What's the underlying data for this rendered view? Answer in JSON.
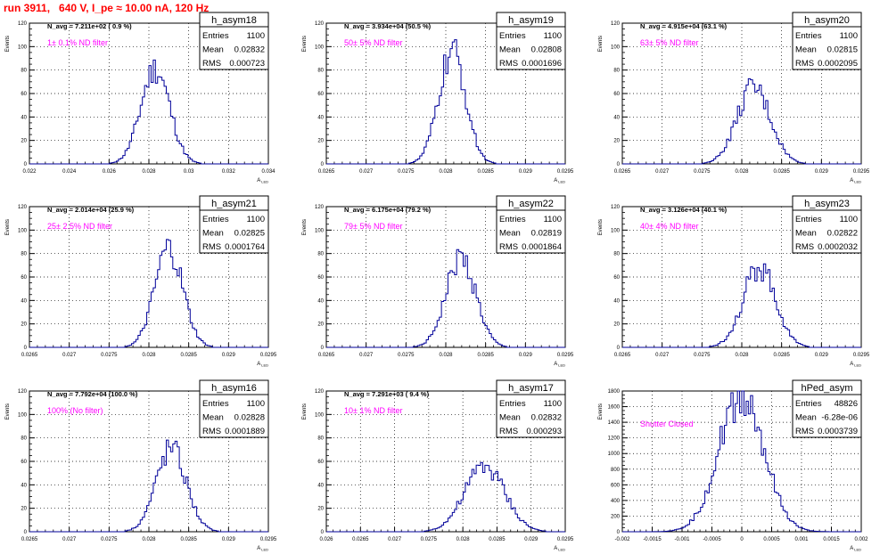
{
  "page_title": "run 3911,   640 V, I_pe ≈ 10.00 nA, 120 Hz",
  "colors": {
    "histogram": "#000099",
    "text": "#000000",
    "filter_label": "#ff00ff",
    "title": "#ff0000"
  },
  "chart_data": [
    {
      "type": "bar",
      "name": "h_asym18",
      "ylabel": "Events",
      "xlabel": "A_LED",
      "grid": true,
      "xlim": [
        0.022,
        0.034
      ],
      "ylim": [
        0,
        120
      ],
      "xticks": [
        "0.022",
        "0.024",
        "0.026",
        "0.028",
        "0.03",
        "0.032",
        "0.034"
      ],
      "yticks": [
        "0",
        "20",
        "40",
        "60",
        "80",
        "100",
        "120"
      ],
      "stats": [
        [
          "Entries",
          "1100"
        ],
        [
          "Mean",
          "0.02832"
        ],
        [
          "RMS",
          "0.000723"
        ]
      ],
      "annotation": "N_avg = 7.211e+02 ( 0.9 %)",
      "filter_label": "1± 0.1% ND filter",
      "peak": 83,
      "dist": {
        "mean": 0.02832,
        "rms": 0.000723
      }
    },
    {
      "type": "bar",
      "name": "h_asym19",
      "ylabel": "Events",
      "xlabel": "A_LED",
      "grid": true,
      "xlim": [
        0.0265,
        0.0295
      ],
      "ylim": [
        0,
        120
      ],
      "xticks": [
        "0.0265",
        "0.027",
        "0.0275",
        "0.028",
        "0.0285",
        "0.029",
        "0.0295"
      ],
      "yticks": [
        "0",
        "20",
        "40",
        "60",
        "80",
        "100",
        "120"
      ],
      "stats": [
        [
          "Entries",
          "1100"
        ],
        [
          "Mean",
          "0.02808"
        ],
        [
          "RMS",
          "0.0001696"
        ]
      ],
      "annotation": "N_avg = 3.934e+04 (50.5 %)",
      "filter_label": "50± 5% ND filter",
      "peak": 97,
      "dist": {
        "mean": 0.02808,
        "rms": 0.0001696
      }
    },
    {
      "type": "bar",
      "name": "h_asym20",
      "ylabel": "Events",
      "xlabel": "A_LED",
      "grid": true,
      "xlim": [
        0.0265,
        0.0295
      ],
      "ylim": [
        0,
        120
      ],
      "xticks": [
        "0.0265",
        "0.027",
        "0.0275",
        "0.028",
        "0.0285",
        "0.029",
        "0.0295"
      ],
      "yticks": [
        "0",
        "20",
        "40",
        "60",
        "80",
        "100",
        "120"
      ],
      "stats": [
        [
          "Entries",
          "1100"
        ],
        [
          "Mean",
          "0.02815"
        ],
        [
          "RMS",
          "0.0002095"
        ]
      ],
      "annotation": "N_avg = 4.915e+04 (63.1 %)",
      "filter_label": "63± 5% ND filter",
      "peak": 66,
      "dist": {
        "mean": 0.02815,
        "rms": 0.0002095
      }
    },
    {
      "type": "bar",
      "name": "h_asym21",
      "ylabel": "Events",
      "xlabel": "A_LED",
      "grid": true,
      "xlim": [
        0.0265,
        0.0295
      ],
      "ylim": [
        0,
        120
      ],
      "xticks": [
        "0.0265",
        "0.027",
        "0.0275",
        "0.028",
        "0.0285",
        "0.029",
        "0.0295"
      ],
      "yticks": [
        "0",
        "20",
        "40",
        "60",
        "80",
        "100",
        "120"
      ],
      "stats": [
        [
          "Entries",
          "1100"
        ],
        [
          "Mean",
          "0.02825"
        ],
        [
          "RMS",
          "0.0001764"
        ]
      ],
      "annotation": "N_avg = 2.014e+04 (25.9 %)",
      "filter_label": "25± 2.5% ND filter",
      "peak": 85,
      "dist": {
        "mean": 0.02825,
        "rms": 0.0001764
      }
    },
    {
      "type": "bar",
      "name": "h_asym22",
      "ylabel": "Events",
      "xlabel": "A_LED",
      "grid": true,
      "xlim": [
        0.0265,
        0.0295
      ],
      "ylim": [
        0,
        120
      ],
      "xticks": [
        "0.0265",
        "0.027",
        "0.0275",
        "0.028",
        "0.0285",
        "0.029",
        "0.0295"
      ],
      "yticks": [
        "0",
        "20",
        "40",
        "60",
        "80",
        "100",
        "120"
      ],
      "stats": [
        [
          "Entries",
          "1100"
        ],
        [
          "Mean",
          "0.02819"
        ],
        [
          "RMS",
          "0.0001864"
        ]
      ],
      "annotation": "N_avg = 6.175e+04 (79.2 %)",
      "filter_label": "79± 5% ND filter",
      "peak": 78,
      "dist": {
        "mean": 0.02819,
        "rms": 0.0001864
      }
    },
    {
      "type": "bar",
      "name": "h_asym23",
      "ylabel": "Events",
      "xlabel": "A_LED",
      "grid": true,
      "xlim": [
        0.0265,
        0.0295
      ],
      "ylim": [
        0,
        120
      ],
      "xticks": [
        "0.0265",
        "0.027",
        "0.0275",
        "0.028",
        "0.0285",
        "0.029",
        "0.0295"
      ],
      "yticks": [
        "0",
        "20",
        "40",
        "60",
        "80",
        "100",
        "120"
      ],
      "stats": [
        [
          "Entries",
          "1100"
        ],
        [
          "Mean",
          "0.02822"
        ],
        [
          "RMS",
          "0.0002032"
        ]
      ],
      "annotation": "N_avg = 3.126e+04 (40.1 %)",
      "filter_label": "40± 4% ND filter",
      "peak": 70,
      "dist": {
        "mean": 0.02822,
        "rms": 0.0002032
      }
    },
    {
      "type": "bar",
      "name": "h_asym16",
      "ylabel": "Events",
      "xlabel": "A_LED",
      "grid": true,
      "xlim": [
        0.0265,
        0.0295
      ],
      "ylim": [
        0,
        120
      ],
      "xticks": [
        "0.0265",
        "0.027",
        "0.0275",
        "0.028",
        "0.0285",
        "0.029",
        "0.0295"
      ],
      "yticks": [
        "0",
        "20",
        "40",
        "60",
        "80",
        "100",
        "120"
      ],
      "stats": [
        [
          "Entries",
          "1100"
        ],
        [
          "Mean",
          "0.02828"
        ],
        [
          "RMS",
          "0.0001889"
        ]
      ],
      "annotation": "N_avg = 7.792e+04 (100.0 %)",
      "filter_label": "100% (No filter)",
      "peak": 73,
      "dist": {
        "mean": 0.02828,
        "rms": 0.0001889
      }
    },
    {
      "type": "bar",
      "name": "h_asym17",
      "ylabel": "Events",
      "xlabel": "A_LED",
      "grid": true,
      "xlim": [
        0.026,
        0.0295
      ],
      "ylim": [
        0,
        120
      ],
      "xticks": [
        "0.026",
        "0.0265",
        "0.027",
        "0.0275",
        "0.028",
        "0.0285",
        "0.029",
        "0.0295"
      ],
      "yticks": [
        "0",
        "20",
        "40",
        "60",
        "80",
        "100",
        "120"
      ],
      "stats": [
        [
          "Entries",
          "1100"
        ],
        [
          "Mean",
          "0.02832"
        ],
        [
          "RMS",
          "0.000293"
        ]
      ],
      "annotation": "N_avg = 7.291e+03 ( 9.4 %)",
      "filter_label": "10± 1% ND filter",
      "peak": 57,
      "dist": {
        "mean": 0.02832,
        "rms": 0.000293
      }
    },
    {
      "type": "bar",
      "name": "hPed_asym",
      "ylabel": "Events",
      "xlabel": "A_LED",
      "grid": true,
      "xlim": [
        -0.002,
        0.002
      ],
      "ylim": [
        0,
        1800
      ],
      "xticks": [
        "-0.002",
        "-0.0015",
        "-0.001",
        "-0.0005",
        "0",
        "0.0005",
        "0.001",
        "0.0015",
        "0.002"
      ],
      "yticks": [
        "0",
        "200",
        "400",
        "600",
        "800",
        "1000",
        "1200",
        "1400",
        "1600",
        "1800"
      ],
      "stats": [
        [
          "Entries",
          "48826"
        ],
        [
          "Mean",
          "-6.28e-06"
        ],
        [
          "RMS",
          "0.0003739"
        ]
      ],
      "annotation": "",
      "filter_label": "Shutter Closed",
      "peak": 1790,
      "dist": {
        "mean": -6.28e-06,
        "rms": 0.0003739
      }
    }
  ]
}
